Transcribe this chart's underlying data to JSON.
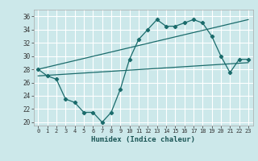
{
  "title": "",
  "xlabel": "Humidex (Indice chaleur)",
  "ylabel": "",
  "background_color": "#cce8ea",
  "grid_color": "#ffffff",
  "line_color": "#1a6b6b",
  "xlim": [
    -0.5,
    23.5
  ],
  "ylim": [
    19.5,
    37
  ],
  "yticks": [
    20,
    22,
    24,
    26,
    28,
    30,
    32,
    34,
    36
  ],
  "xticks": [
    0,
    1,
    2,
    3,
    4,
    5,
    6,
    7,
    8,
    9,
    10,
    11,
    12,
    13,
    14,
    15,
    16,
    17,
    18,
    19,
    20,
    21,
    22,
    23
  ],
  "line1_x": [
    0,
    1,
    2,
    3,
    4,
    5,
    6,
    7,
    8,
    9,
    10,
    11,
    12,
    13,
    14,
    15,
    16,
    17,
    18,
    19,
    20,
    21,
    22,
    23
  ],
  "line1_y": [
    28,
    27,
    26.5,
    23.5,
    23,
    21.5,
    21.5,
    20,
    21.5,
    25,
    29.5,
    32.5,
    34,
    35.5,
    34.5,
    34.5,
    35,
    35.5,
    35,
    33,
    30,
    27.5,
    29.5,
    29.5
  ],
  "line2_x": [
    0,
    23
  ],
  "line2_y": [
    28,
    35.5
  ],
  "line3_x": [
    0,
    23
  ],
  "line3_y": [
    27,
    29
  ]
}
